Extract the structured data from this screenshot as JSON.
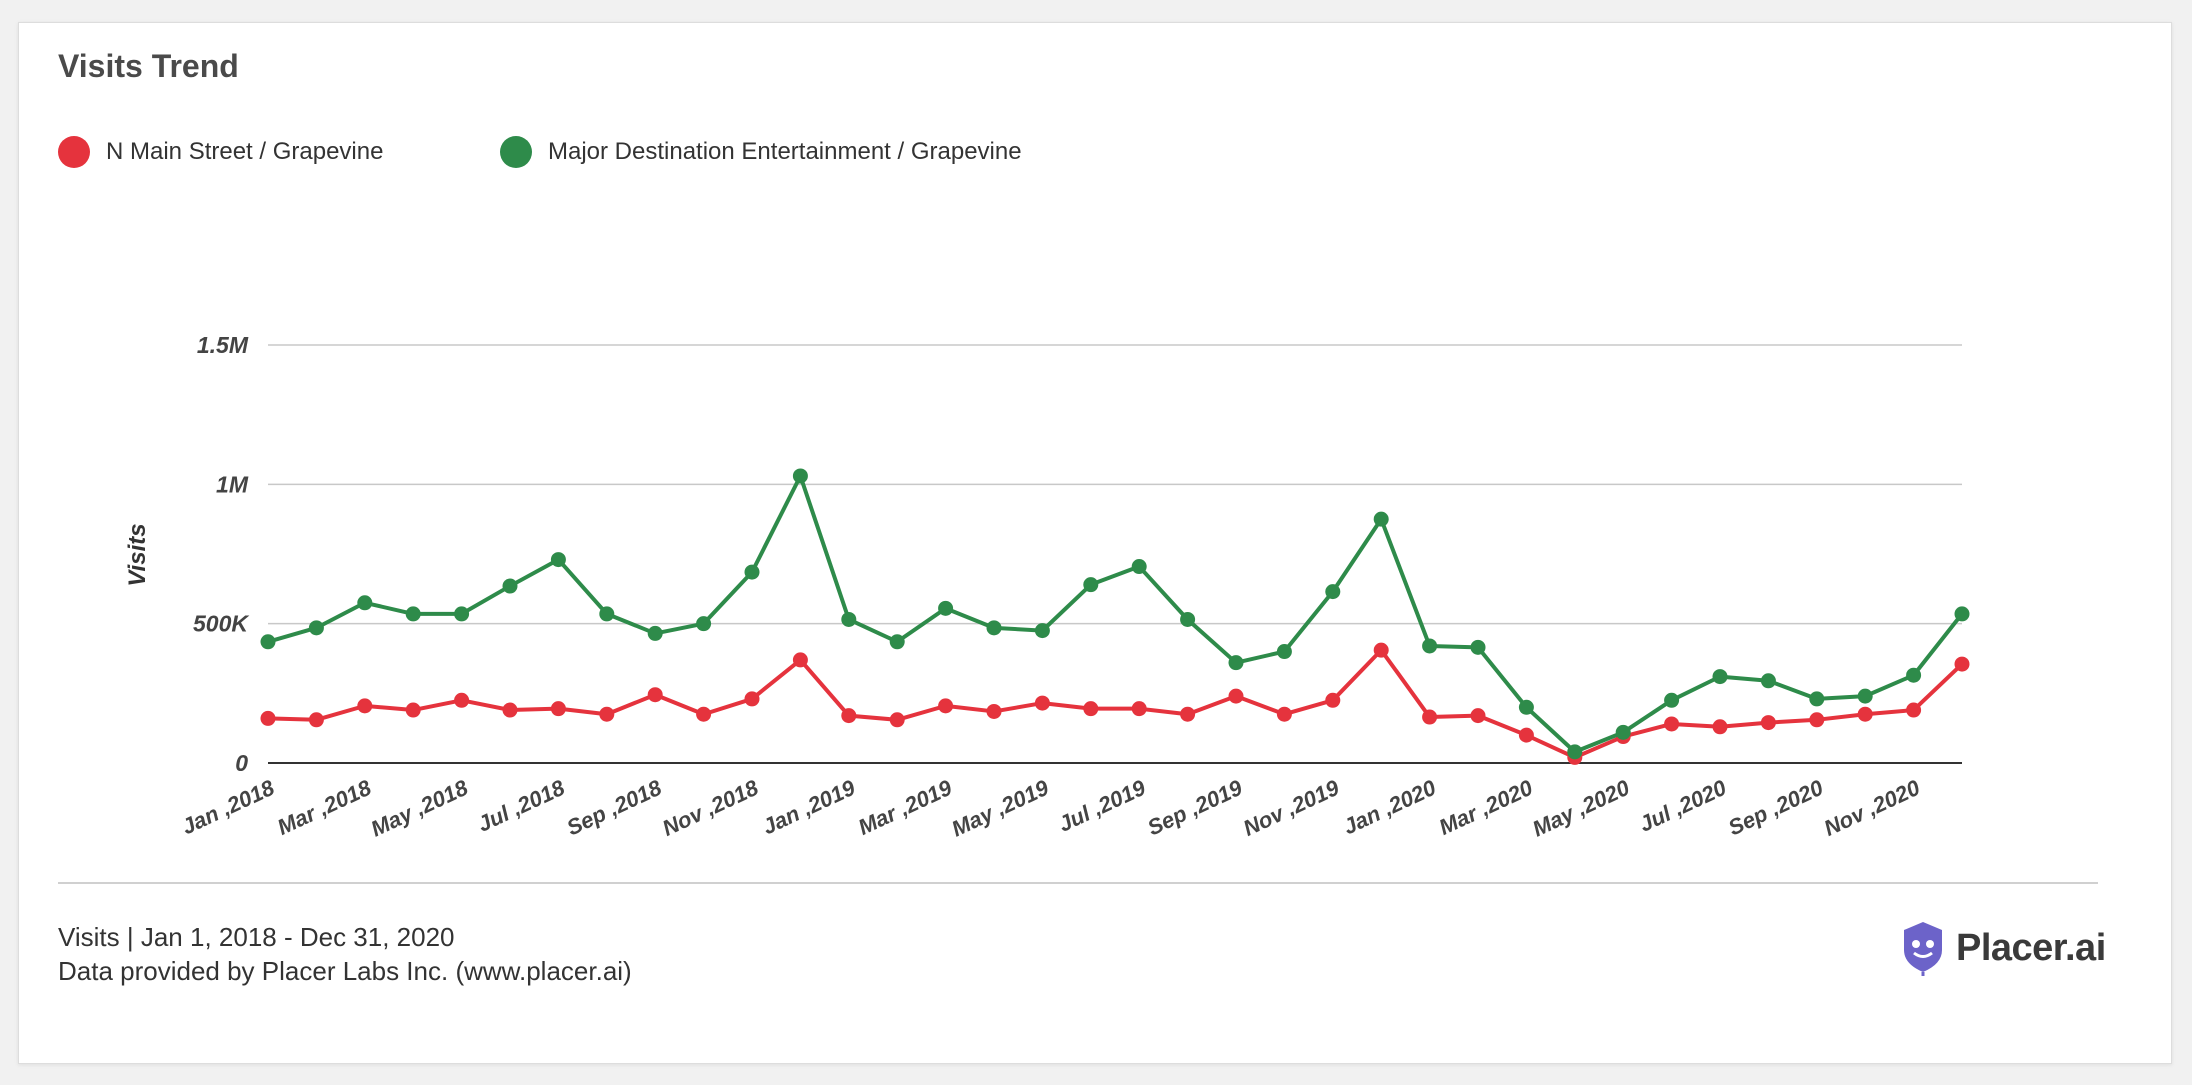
{
  "title": "Visits Trend",
  "legend": [
    {
      "label": "N Main Street / Grapevine",
      "color": "#e5333d"
    },
    {
      "label": "Major Destination Entertainment / Grapevine",
      "color": "#2e8b4a"
    }
  ],
  "footer": {
    "line1": "Visits | Jan 1, 2018 - Dec 31, 2020",
    "line2": "Data provided by Placer Labs Inc. (www.placer.ai)"
  },
  "logo": {
    "text": "Placer.ai",
    "icon": "placer-logo-icon",
    "color": "#6c63c9"
  },
  "chart_data": {
    "type": "line",
    "title": "Visits Trend",
    "ylabel": "Visits",
    "xlabel": "",
    "ylim": [
      0,
      1500000
    ],
    "yticks": [
      0,
      500000,
      1000000,
      1500000
    ],
    "ytick_labels": [
      "0",
      "500K",
      "1M",
      "1.5M"
    ],
    "x": [
      "Jan ,2018",
      "Feb ,2018",
      "Mar ,2018",
      "Apr ,2018",
      "May ,2018",
      "Jun ,2018",
      "Jul ,2018",
      "Aug ,2018",
      "Sep ,2018",
      "Oct ,2018",
      "Nov ,2018",
      "Dec ,2018",
      "Jan ,2019",
      "Feb ,2019",
      "Mar ,2019",
      "Apr ,2019",
      "May ,2019",
      "Jun ,2019",
      "Jul ,2019",
      "Aug ,2019",
      "Sep ,2019",
      "Oct ,2019",
      "Nov ,2019",
      "Dec ,2019",
      "Jan ,2020",
      "Feb ,2020",
      "Mar ,2020",
      "Apr ,2020",
      "May ,2020",
      "Jun ,2020",
      "Jul ,2020",
      "Aug ,2020",
      "Sep ,2020",
      "Oct ,2020",
      "Nov ,2020",
      "Dec ,2020"
    ],
    "xtick_labels": [
      "Jan ,2018",
      "",
      "Mar ,2018",
      "",
      "May ,2018",
      "",
      "Jul ,2018",
      "",
      "Sep ,2018",
      "",
      "Nov ,2018",
      "",
      "Jan ,2019",
      "",
      "Mar ,2019",
      "",
      "May ,2019",
      "",
      "Jul ,2019",
      "",
      "Sep ,2019",
      "",
      "Nov ,2019",
      "",
      "Jan ,2020",
      "",
      "Mar ,2020",
      "",
      "May ,2020",
      "",
      "Jul ,2020",
      "",
      "Sep ,2020",
      "",
      "Nov ,2020",
      ""
    ],
    "grid": true,
    "legend_position": "top-left",
    "series": [
      {
        "name": "N Main Street / Grapevine",
        "color": "#e5333d",
        "values": [
          160000,
          155000,
          205000,
          190000,
          225000,
          190000,
          195000,
          175000,
          245000,
          175000,
          230000,
          370000,
          170000,
          155000,
          205000,
          185000,
          215000,
          195000,
          195000,
          175000,
          240000,
          175000,
          225000,
          405000,
          165000,
          170000,
          100000,
          20000,
          95000,
          140000,
          130000,
          145000,
          155000,
          175000,
          190000,
          355000
        ]
      },
      {
        "name": "Major Destination Entertainment / Grapevine",
        "color": "#2e8b4a",
        "values": [
          435000,
          485000,
          575000,
          535000,
          535000,
          635000,
          730000,
          535000,
          465000,
          500000,
          685000,
          1030000,
          515000,
          435000,
          555000,
          485000,
          475000,
          640000,
          705000,
          515000,
          360000,
          400000,
          615000,
          875000,
          420000,
          415000,
          200000,
          40000,
          110000,
          225000,
          310000,
          295000,
          230000,
          240000,
          315000,
          535000
        ]
      }
    ]
  }
}
